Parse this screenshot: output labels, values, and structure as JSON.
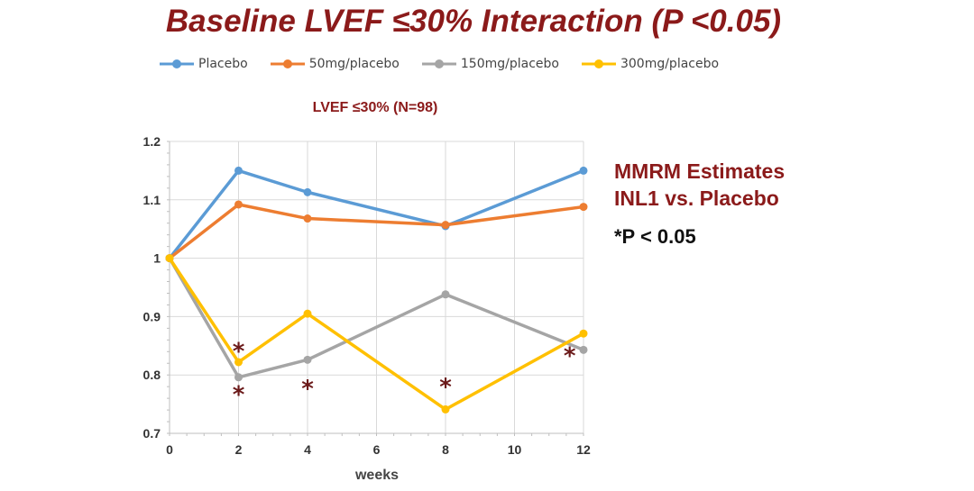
{
  "slide_title": "Baseline LVEF ≤30% Interaction (P <0.05)",
  "side_note": {
    "line1": "MMRM Estimates",
    "line2": "INL1 vs. Placebo",
    "pvalue": "*P < 0.05"
  },
  "chart_data": {
    "type": "line",
    "title": "LVEF ≤30% (N=98)",
    "xlabel": "weeks",
    "ylabel": "",
    "x": [
      0,
      2,
      4,
      8,
      12
    ],
    "xlim": [
      0,
      12
    ],
    "ylim": [
      0.7,
      1.2
    ],
    "x_ticks": [
      0,
      2,
      4,
      6,
      8,
      10,
      12
    ],
    "y_ticks": [
      0.7,
      0.8,
      0.9,
      1,
      1.1,
      1.2
    ],
    "y_tick_labels": [
      "0.7",
      "0.8",
      "0.9",
      "1",
      "1.1",
      "1.2"
    ],
    "grid": true,
    "legend_position": "top",
    "series": [
      {
        "name": "Placebo",
        "color": "#5b9bd5",
        "values": [
          1.0,
          1.15,
          1.113,
          1.055,
          1.15
        ]
      },
      {
        "name": "50mg/placebo",
        "color": "#ed7d31",
        "values": [
          1.0,
          1.092,
          1.068,
          1.057,
          1.088
        ]
      },
      {
        "name": "150mg/placebo",
        "color": "#a5a5a5",
        "values": [
          1.0,
          0.796,
          0.826,
          0.938,
          0.843
        ]
      },
      {
        "name": "300mg/placebo",
        "color": "#ffc000",
        "values": [
          1.0,
          0.822,
          0.905,
          0.741,
          0.871
        ]
      }
    ],
    "annotations": [
      {
        "text": "*",
        "x": 2,
        "y": 0.846
      },
      {
        "text": "*",
        "x": 2,
        "y": 0.772
      },
      {
        "text": "*",
        "x": 4,
        "y": 0.782
      },
      {
        "text": "*",
        "x": 8,
        "y": 0.785
      },
      {
        "text": "*",
        "x": 11.6,
        "y": 0.838
      }
    ]
  }
}
